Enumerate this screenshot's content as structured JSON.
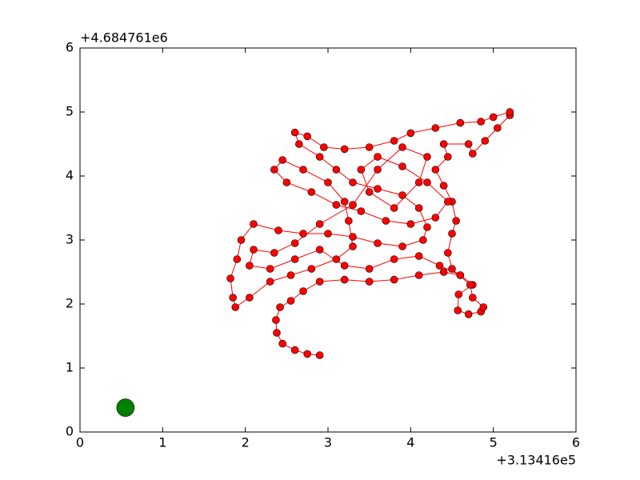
{
  "chart_data": {
    "type": "line",
    "x_offset_label": "+3.13416e5",
    "y_offset_label": "+4.684761e6",
    "xlim": [
      0,
      6
    ],
    "ylim": [
      0,
      6
    ],
    "xticks": [
      0,
      1,
      2,
      3,
      4,
      5,
      6
    ],
    "yticks": [
      0,
      1,
      2,
      3,
      4,
      5,
      6
    ],
    "series": [
      {
        "color": "#ff0000",
        "x": [
          2.9,
          2.75,
          2.6,
          2.45,
          2.38,
          2.37,
          2.42,
          2.55,
          2.7,
          2.9,
          3.2,
          3.5,
          3.8,
          4.1,
          4.4,
          4.6,
          4.75,
          4.58,
          4.57,
          4.7,
          4.85,
          4.88,
          4.75,
          4.72,
          4.5,
          4.45,
          4.5,
          4.55,
          4.5,
          4.4,
          4.3,
          4.45,
          4.4,
          4.7,
          4.75,
          4.9,
          5.05,
          5.2,
          5.2,
          5.0,
          4.85,
          4.6,
          4.3,
          4.0,
          3.8,
          3.5,
          3.2,
          2.95,
          2.75,
          2.6,
          2.65,
          2.9,
          3.1,
          3.3,
          3.6,
          3.9,
          4.1,
          4.2,
          4.15,
          3.9,
          3.6,
          3.3,
          3.0,
          2.7,
          2.4,
          2.1,
          1.95,
          1.9,
          1.82,
          1.85,
          1.88,
          2.05,
          2.3,
          2.55,
          2.8,
          3.1,
          3.3,
          3.25,
          3.2,
          3.0,
          2.7,
          2.45,
          2.35,
          2.5,
          2.8,
          3.1,
          3.4,
          3.7,
          4.0,
          4.3,
          4.45,
          4.2,
          3.9,
          3.6,
          3.4,
          3.5,
          3.8,
          4.1,
          4.2,
          3.9,
          3.6,
          3.3,
          2.9,
          2.6,
          2.35,
          2.1,
          2.05,
          2.3,
          2.6,
          2.9,
          3.2,
          3.5,
          3.8,
          4.1,
          4.35,
          4.6
        ],
        "values": [
          1.2,
          1.22,
          1.28,
          1.38,
          1.55,
          1.75,
          1.95,
          2.05,
          2.2,
          2.35,
          2.38,
          2.35,
          2.38,
          2.45,
          2.5,
          2.45,
          2.3,
          2.15,
          1.9,
          1.84,
          1.88,
          1.95,
          2.1,
          2.3,
          2.55,
          2.8,
          3.1,
          3.3,
          3.6,
          3.85,
          4.1,
          4.3,
          4.5,
          4.5,
          4.35,
          4.55,
          4.75,
          4.95,
          5.0,
          4.92,
          4.85,
          4.83,
          4.75,
          4.67,
          4.55,
          4.45,
          4.42,
          4.45,
          4.62,
          4.68,
          4.5,
          4.3,
          4.1,
          3.9,
          3.8,
          3.7,
          3.5,
          3.2,
          3.0,
          2.9,
          2.95,
          3.05,
          3.1,
          3.1,
          3.15,
          3.25,
          3.0,
          2.7,
          2.4,
          2.1,
          1.95,
          2.1,
          2.35,
          2.45,
          2.55,
          2.7,
          2.9,
          3.3,
          3.6,
          3.9,
          4.1,
          4.25,
          4.1,
          3.9,
          3.75,
          3.55,
          3.45,
          3.3,
          3.25,
          3.35,
          3.6,
          3.9,
          4.15,
          4.3,
          4.1,
          3.75,
          3.5,
          3.9,
          4.3,
          4.45,
          4.1,
          3.55,
          3.25,
          2.95,
          2.8,
          2.85,
          2.6,
          2.55,
          2.7,
          2.85,
          2.6,
          2.55,
          2.7,
          2.75,
          2.6,
          2.45
        ]
      },
      {
        "color": "#008000",
        "x": [
          0.55
        ],
        "values": [
          0.38
        ]
      }
    ]
  }
}
